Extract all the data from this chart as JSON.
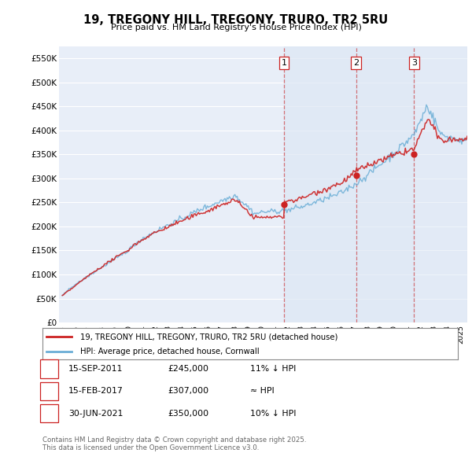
{
  "title": "19, TREGONY HILL, TREGONY, TRURO, TR2 5RU",
  "subtitle": "Price paid vs. HM Land Registry's House Price Index (HPI)",
  "ylabel_ticks": [
    "£0",
    "£50K",
    "£100K",
    "£150K",
    "£200K",
    "£250K",
    "£300K",
    "£350K",
    "£400K",
    "£450K",
    "£500K",
    "£550K"
  ],
  "ytick_values": [
    0,
    50000,
    100000,
    150000,
    200000,
    250000,
    300000,
    350000,
    400000,
    450000,
    500000,
    550000
  ],
  "ylim": [
    0,
    575000
  ],
  "background_color": "#ffffff",
  "plot_bg_color": "#e8eef8",
  "grid_color": "#ffffff",
  "shade_color": "#dde8f5",
  "hpi_color": "#6baed6",
  "price_color": "#cc2222",
  "vline_color": "#cc2222",
  "sale_year_floats": [
    2011.708,
    2017.125,
    2021.5
  ],
  "sale_prices": [
    245000,
    307000,
    350000
  ],
  "sale_labels": [
    "1",
    "2",
    "3"
  ],
  "legend_label_price": "19, TREGONY HILL, TREGONY, TRURO, TR2 5RU (detached house)",
  "legend_label_hpi": "HPI: Average price, detached house, Cornwall",
  "table_rows": [
    [
      "1",
      "15-SEP-2011",
      "£245,000",
      "11% ↓ HPI"
    ],
    [
      "2",
      "15-FEB-2017",
      "£307,000",
      "≈ HPI"
    ],
    [
      "3",
      "30-JUN-2021",
      "£350,000",
      "10% ↓ HPI"
    ]
  ],
  "footer": "Contains HM Land Registry data © Crown copyright and database right 2025.\nThis data is licensed under the Open Government Licence v3.0.",
  "xlim_start": 1994.75,
  "xlim_end": 2025.5
}
